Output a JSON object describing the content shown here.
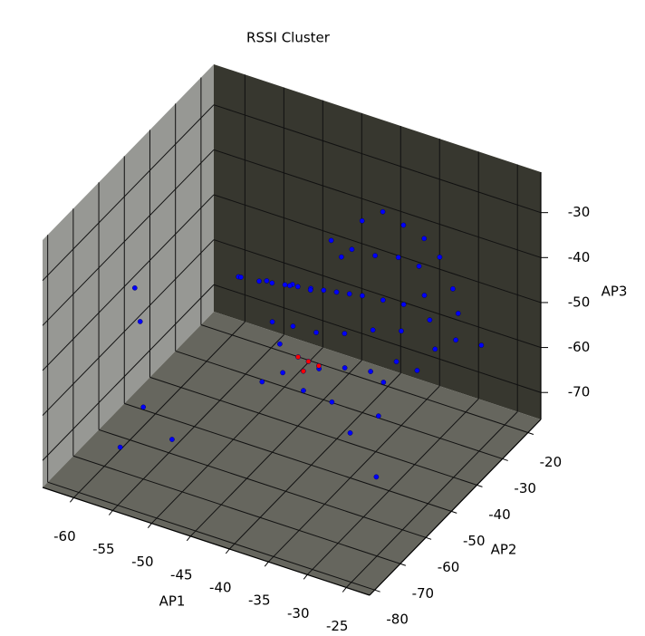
{
  "chart_data": {
    "type": "scatter3d",
    "title": "RSSI Cluster",
    "xlabel": "AP1",
    "ylabel": "AP2",
    "zlabel": "AP3",
    "xlim": [
      -64,
      -22
    ],
    "ylim": [
      -82,
      -15
    ],
    "zlim": [
      -76,
      -21
    ],
    "xticks": [
      -60,
      -55,
      -50,
      -45,
      -40,
      -35,
      -30,
      -25
    ],
    "yticks": [
      -80,
      -70,
      -60,
      -50,
      -40,
      -30,
      -20
    ],
    "zticks": [
      -70,
      -60,
      -50,
      -40,
      -30
    ],
    "grid": true,
    "series": [
      {
        "color": "#0000ff",
        "x": [
          -45,
          -44,
          -43,
          -42,
          -41,
          -40,
          -46,
          -47,
          -48,
          -50,
          -38,
          -36,
          -35,
          -37,
          -39,
          -41,
          -43,
          -45,
          -40,
          -42,
          -44,
          -38,
          -36,
          -34,
          -32,
          -30,
          -33,
          -35,
          -37,
          -39,
          -47,
          -49,
          -51,
          -48,
          -46,
          -44,
          -42,
          -40,
          -38,
          -36,
          -34,
          -31,
          -29,
          -28,
          -31,
          -34,
          -43,
          -45,
          -41,
          -38,
          -62,
          -60,
          -55,
          -50,
          -56,
          -30,
          -28,
          -35,
          -33,
          -46
        ],
        "y": [
          -40,
          -38,
          -36,
          -34,
          -32,
          -30,
          -42,
          -44,
          -46,
          -48,
          -28,
          -26,
          -30,
          -35,
          -40,
          -45,
          -48,
          -50,
          -25,
          -28,
          -30,
          -22,
          -20,
          -24,
          -28,
          -32,
          -38,
          -42,
          -46,
          -50,
          -36,
          -40,
          -44,
          -34,
          -32,
          -26,
          -24,
          -22,
          -20,
          -18,
          -18,
          -22,
          -26,
          -30,
          -36,
          -40,
          -52,
          -54,
          -50,
          -48,
          -52,
          -56,
          -70,
          -74,
          -76,
          -55,
          -20,
          -50,
          -45,
          -44
        ],
        "z": [
          -45,
          -46,
          -47,
          -48,
          -49,
          -50,
          -44,
          -43,
          -42,
          -41,
          -51,
          -52,
          -55,
          -53,
          -52,
          -50,
          -48,
          -47,
          -44,
          -42,
          -40,
          -45,
          -47,
          -50,
          -52,
          -55,
          -56,
          -57,
          -55,
          -54,
          -48,
          -46,
          -44,
          -50,
          -51,
          -46,
          -38,
          -36,
          -39,
          -42,
          -45,
          -48,
          -50,
          -53,
          -58,
          -60,
          -56,
          -58,
          -60,
          -62,
          -48,
          -52,
          -60,
          -62,
          -66,
          -70,
          -60,
          -66,
          -64,
          -56
        ]
      },
      {
        "color": "#ff0000",
        "x": [
          -42,
          -41,
          -43,
          -42
        ],
        "y": [
          -45,
          -44,
          -46,
          -47
        ],
        "z": [
          -57,
          -58,
          -56,
          -58
        ]
      }
    ]
  }
}
